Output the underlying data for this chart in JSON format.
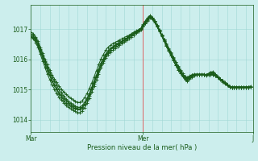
{
  "xlabel": "Pression niveau de la mer( hPa )",
  "bg_color": "#cceeed",
  "plot_bg_color": "#cceeed",
  "grid_color": "#a0d8d4",
  "line_color": "#1a5c1a",
  "red_line_color": "#dd6666",
  "ylim": [
    1013.6,
    1017.8
  ],
  "yticks": [
    1014,
    1015,
    1016,
    1017
  ],
  "xtick_labels": [
    "Mar",
    "Mer",
    "J"
  ],
  "xtick_positions": [
    0,
    48,
    95
  ],
  "total_points": 96,
  "series": [
    [
      1016.8,
      1016.75,
      1016.65,
      1016.5,
      1016.3,
      1016.1,
      1015.9,
      1015.7,
      1015.5,
      1015.3,
      1015.15,
      1015.0,
      1014.85,
      1014.75,
      1014.65,
      1014.55,
      1014.5,
      1014.45,
      1014.4,
      1014.38,
      1014.35,
      1014.35,
      1014.4,
      1014.5,
      1014.65,
      1014.8,
      1015.0,
      1015.2,
      1015.4,
      1015.6,
      1015.8,
      1015.95,
      1016.1,
      1016.2,
      1016.3,
      1016.38,
      1016.45,
      1016.5,
      1016.55,
      1016.6,
      1016.65,
      1016.7,
      1016.75,
      1016.8,
      1016.85,
      1016.9,
      1016.95,
      1017.0,
      1017.15,
      1017.28,
      1017.38,
      1017.45,
      1017.38,
      1017.28,
      1017.12,
      1016.95,
      1016.78,
      1016.6,
      1016.44,
      1016.28,
      1016.12,
      1015.96,
      1015.8,
      1015.65,
      1015.55,
      1015.45,
      1015.35,
      1015.3,
      1015.38,
      1015.43,
      1015.48,
      1015.5,
      1015.5,
      1015.5,
      1015.5,
      1015.5,
      1015.52,
      1015.58,
      1015.6,
      1015.52,
      1015.44,
      1015.36,
      1015.3,
      1015.22,
      1015.16,
      1015.1,
      1015.06,
      1015.05,
      1015.05,
      1015.05,
      1015.05,
      1015.05,
      1015.05,
      1015.06,
      1015.1
    ],
    [
      1016.85,
      1016.8,
      1016.7,
      1016.55,
      1016.35,
      1016.15,
      1015.95,
      1015.75,
      1015.58,
      1015.42,
      1015.28,
      1015.14,
      1015.0,
      1014.9,
      1014.8,
      1014.7,
      1014.62,
      1014.56,
      1014.5,
      1014.46,
      1014.42,
      1014.42,
      1014.48,
      1014.58,
      1014.72,
      1014.88,
      1015.08,
      1015.28,
      1015.48,
      1015.68,
      1015.88,
      1016.02,
      1016.18,
      1016.28,
      1016.36,
      1016.42,
      1016.48,
      1016.52,
      1016.56,
      1016.6,
      1016.65,
      1016.7,
      1016.76,
      1016.82,
      1016.87,
      1016.92,
      1016.97,
      1017.02,
      1017.12,
      1017.22,
      1017.32,
      1017.42,
      1017.36,
      1017.26,
      1017.11,
      1016.96,
      1016.8,
      1016.65,
      1016.5,
      1016.35,
      1016.2,
      1016.05,
      1015.9,
      1015.76,
      1015.62,
      1015.5,
      1015.4,
      1015.38,
      1015.44,
      1015.48,
      1015.5,
      1015.5,
      1015.5,
      1015.5,
      1015.5,
      1015.5,
      1015.5,
      1015.5,
      1015.5,
      1015.46,
      1015.4,
      1015.35,
      1015.28,
      1015.22,
      1015.16,
      1015.1,
      1015.08,
      1015.08,
      1015.08,
      1015.08,
      1015.08,
      1015.08,
      1015.08,
      1015.08,
      1015.1
    ],
    [
      1016.9,
      1016.85,
      1016.75,
      1016.6,
      1016.4,
      1016.2,
      1016.0,
      1015.82,
      1015.66,
      1015.5,
      1015.36,
      1015.24,
      1015.12,
      1015.02,
      1014.93,
      1014.85,
      1014.78,
      1014.72,
      1014.66,
      1014.62,
      1014.58,
      1014.58,
      1014.64,
      1014.74,
      1014.88,
      1015.04,
      1015.22,
      1015.42,
      1015.62,
      1015.82,
      1016.02,
      1016.16,
      1016.3,
      1016.4,
      1016.46,
      1016.52,
      1016.56,
      1016.6,
      1016.64,
      1016.68,
      1016.72,
      1016.76,
      1016.8,
      1016.85,
      1016.9,
      1016.94,
      1016.98,
      1017.02,
      1017.14,
      1017.24,
      1017.34,
      1017.44,
      1017.38,
      1017.28,
      1017.13,
      1016.98,
      1016.82,
      1016.67,
      1016.52,
      1016.37,
      1016.22,
      1016.07,
      1015.92,
      1015.78,
      1015.65,
      1015.53,
      1015.43,
      1015.4,
      1015.46,
      1015.5,
      1015.52,
      1015.52,
      1015.52,
      1015.52,
      1015.52,
      1015.5,
      1015.5,
      1015.5,
      1015.5,
      1015.46,
      1015.42,
      1015.36,
      1015.3,
      1015.24,
      1015.18,
      1015.12,
      1015.1,
      1015.1,
      1015.1,
      1015.1,
      1015.1,
      1015.1,
      1015.1,
      1015.1,
      1015.12
    ],
    [
      1016.78,
      1016.72,
      1016.62,
      1016.46,
      1016.25,
      1016.04,
      1015.83,
      1015.63,
      1015.46,
      1015.3,
      1015.16,
      1015.03,
      1014.9,
      1014.81,
      1014.72,
      1014.63,
      1014.56,
      1014.5,
      1014.45,
      1014.41,
      1014.37,
      1014.37,
      1014.43,
      1014.53,
      1014.68,
      1014.84,
      1015.04,
      1015.24,
      1015.44,
      1015.64,
      1015.84,
      1015.98,
      1016.14,
      1016.24,
      1016.32,
      1016.38,
      1016.44,
      1016.5,
      1016.54,
      1016.58,
      1016.63,
      1016.68,
      1016.74,
      1016.8,
      1016.85,
      1016.9,
      1016.95,
      1017.0,
      1017.1,
      1017.2,
      1017.3,
      1017.4,
      1017.34,
      1017.24,
      1017.09,
      1016.94,
      1016.78,
      1016.62,
      1016.47,
      1016.32,
      1016.17,
      1016.02,
      1015.87,
      1015.72,
      1015.6,
      1015.48,
      1015.38,
      1015.34,
      1015.42,
      1015.46,
      1015.5,
      1015.5,
      1015.5,
      1015.5,
      1015.5,
      1015.5,
      1015.54,
      1015.58,
      1015.56,
      1015.5,
      1015.43,
      1015.36,
      1015.29,
      1015.22,
      1015.16,
      1015.1,
      1015.07,
      1015.07,
      1015.07,
      1015.07,
      1015.07,
      1015.07,
      1015.07,
      1015.07,
      1015.1
    ],
    [
      1016.75,
      1016.68,
      1016.56,
      1016.39,
      1016.17,
      1015.95,
      1015.73,
      1015.52,
      1015.34,
      1015.17,
      1015.02,
      1014.88,
      1014.75,
      1014.66,
      1014.57,
      1014.49,
      1014.42,
      1014.37,
      1014.32,
      1014.28,
      1014.24,
      1014.24,
      1014.3,
      1014.4,
      1014.55,
      1014.72,
      1014.92,
      1015.12,
      1015.32,
      1015.52,
      1015.72,
      1015.88,
      1016.04,
      1016.16,
      1016.24,
      1016.3,
      1016.36,
      1016.42,
      1016.48,
      1016.52,
      1016.57,
      1016.62,
      1016.68,
      1016.74,
      1016.8,
      1016.86,
      1016.92,
      1016.98,
      1017.08,
      1017.18,
      1017.28,
      1017.38,
      1017.32,
      1017.22,
      1017.07,
      1016.92,
      1016.76,
      1016.6,
      1016.44,
      1016.28,
      1016.12,
      1015.96,
      1015.8,
      1015.65,
      1015.54,
      1015.43,
      1015.32,
      1015.28,
      1015.36,
      1015.41,
      1015.46,
      1015.48,
      1015.48,
      1015.48,
      1015.48,
      1015.46,
      1015.48,
      1015.52,
      1015.54,
      1015.46,
      1015.4,
      1015.32,
      1015.26,
      1015.2,
      1015.14,
      1015.08,
      1015.05,
      1015.05,
      1015.05,
      1015.05,
      1015.05,
      1015.05,
      1015.05,
      1015.05,
      1015.08
    ]
  ]
}
